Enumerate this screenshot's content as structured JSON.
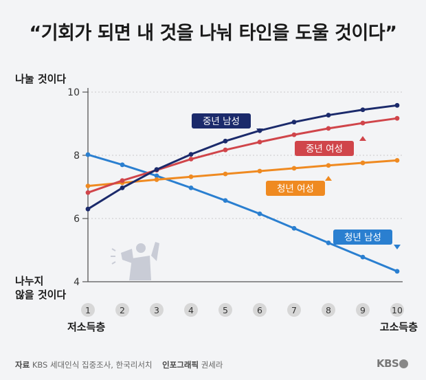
{
  "title": "“기회가 되면 내 것을 나눠 타인을 도울 것이다”",
  "footer": {
    "source_label": "자료",
    "source_text": "KBS 세대인식 집중조사, 한국리서치",
    "graphic_label": "인포그래픽",
    "graphic_text": "권세라",
    "brand": "KBS"
  },
  "colors": {
    "middle_male": "#1b2a6b",
    "middle_female": "#d0454a",
    "young_female": "#ef8a21",
    "young_male": "#2a7fd0",
    "tick_circle": "#d7d7d7"
  },
  "chart_data": {
    "type": "line",
    "x": [
      1,
      2,
      3,
      4,
      5,
      6,
      7,
      8,
      9,
      10
    ],
    "ylim": [
      4,
      10
    ],
    "y_ticks": [
      4,
      6,
      8,
      10
    ],
    "y_top_label": "나눌 것이다",
    "y_bottom_label_line1": "나누지",
    "y_bottom_label_line2": "않을 것이다",
    "x_left_label": "저소득층",
    "x_right_label": "고소득층",
    "grid": true,
    "series": [
      {
        "name": "중년 남성",
        "color_key": "middle_male",
        "values": [
          6.3,
          6.97,
          7.55,
          8.03,
          8.45,
          8.78,
          9.05,
          9.27,
          9.44,
          9.58
        ]
      },
      {
        "name": "중년 여성",
        "color_key": "middle_female",
        "values": [
          6.82,
          7.2,
          7.53,
          7.88,
          8.17,
          8.42,
          8.65,
          8.85,
          9.02,
          9.17
        ]
      },
      {
        "name": "청년 여성",
        "color_key": "young_female",
        "values": [
          7.03,
          7.13,
          7.23,
          7.32,
          7.41,
          7.5,
          7.59,
          7.68,
          7.76,
          7.84
        ]
      },
      {
        "name": "청년 남성",
        "color_key": "young_male",
        "values": [
          8.02,
          7.7,
          7.35,
          6.97,
          6.57,
          6.15,
          5.69,
          5.23,
          4.78,
          4.33
        ]
      }
    ]
  }
}
